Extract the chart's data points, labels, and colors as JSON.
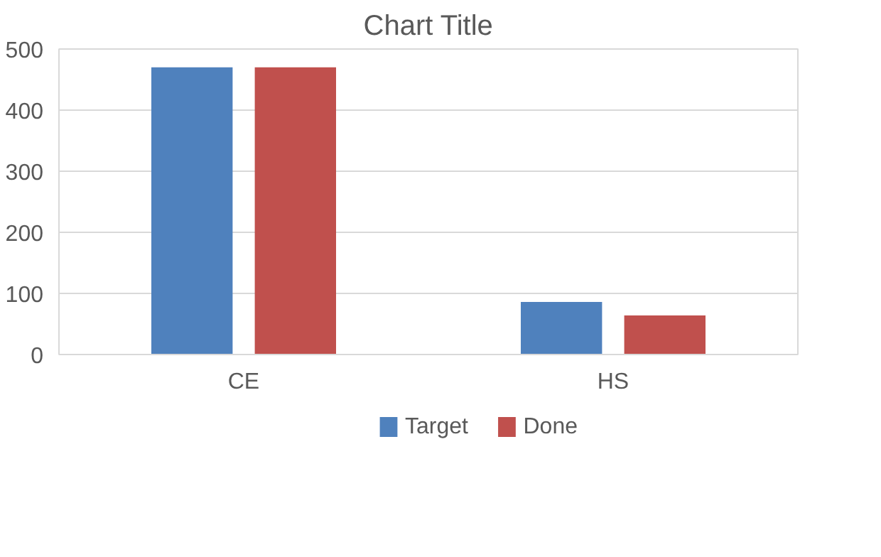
{
  "chart_data": {
    "type": "bar",
    "title": "Chart Title",
    "categories": [
      "CE",
      "HS"
    ],
    "series": [
      {
        "name": "Target",
        "color": "#4f81bd",
        "values": [
          470,
          86
        ]
      },
      {
        "name": "Done",
        "color": "#c0504d",
        "values": [
          470,
          64
        ]
      }
    ],
    "ylim": [
      0,
      500
    ],
    "yticks": [
      0,
      100,
      200,
      300,
      400,
      500
    ],
    "grid": "y",
    "legend": "bottom"
  }
}
